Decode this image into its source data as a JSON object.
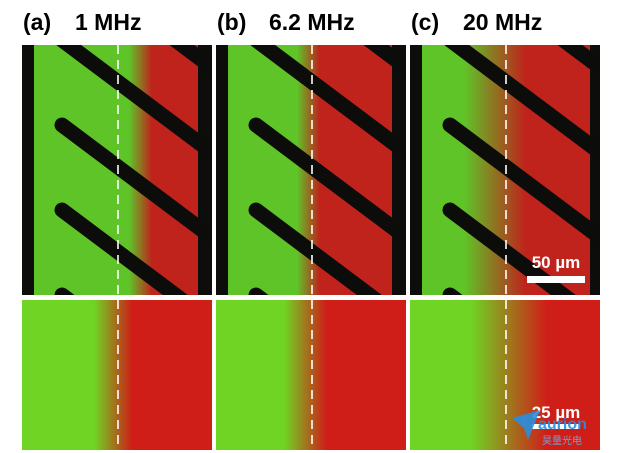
{
  "panels": [
    {
      "label": "(a)",
      "frequency": "1 MHz"
    },
    {
      "label": "(b)",
      "frequency": "6.2 MHz"
    },
    {
      "label": "(c)",
      "frequency": "20 MHz"
    }
  ],
  "scale_bars": {
    "top": "50 µm",
    "bottom": "25 µm"
  },
  "watermark": {
    "brand": "aurion",
    "subtitle": "昊量光电"
  }
}
